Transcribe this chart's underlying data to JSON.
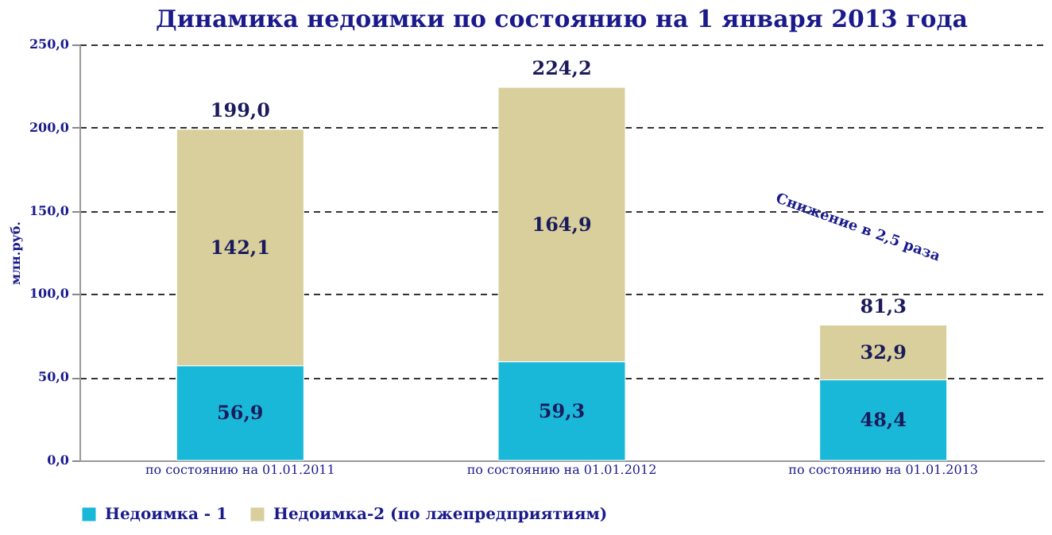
{
  "chart_data": {
    "type": "bar",
    "stacked": true,
    "title": "Динамика недоимки по состоянию на 1 января 2013 года",
    "ylabel": "млн.руб.",
    "categories": [
      "по состоянию на 01.01.2011",
      "по состоянию на 01.01.2012",
      "по состоянию на 01.01.2013"
    ],
    "series": [
      {
        "name": "Недоимка - 1",
        "color": "#1ab8d8",
        "values": [
          56.9,
          59.3,
          48.4
        ],
        "value_labels": [
          "56,9",
          "59,3",
          "48,4"
        ]
      },
      {
        "name": "Недоимка-2 (по лжепредприятиям)",
        "color": "#d8cf9c",
        "values": [
          142.1,
          164.9,
          32.9
        ],
        "value_labels": [
          "142,1",
          "164,9",
          "32,9"
        ]
      }
    ],
    "totals": [
      "199,0",
      "224,2",
      "81,3"
    ],
    "ylim": [
      0,
      250
    ],
    "yticks": [
      {
        "value": 0,
        "label": "0,0"
      },
      {
        "value": 50,
        "label": "50,0"
      },
      {
        "value": 100,
        "label": "100,0"
      },
      {
        "value": 150,
        "label": "150,0"
      },
      {
        "value": 200,
        "label": "200,0"
      },
      {
        "value": 250,
        "label": "250,0"
      }
    ],
    "annotations": [
      "Снижение в 2,5 раза"
    ],
    "grid": "y",
    "legend": "bottom"
  }
}
